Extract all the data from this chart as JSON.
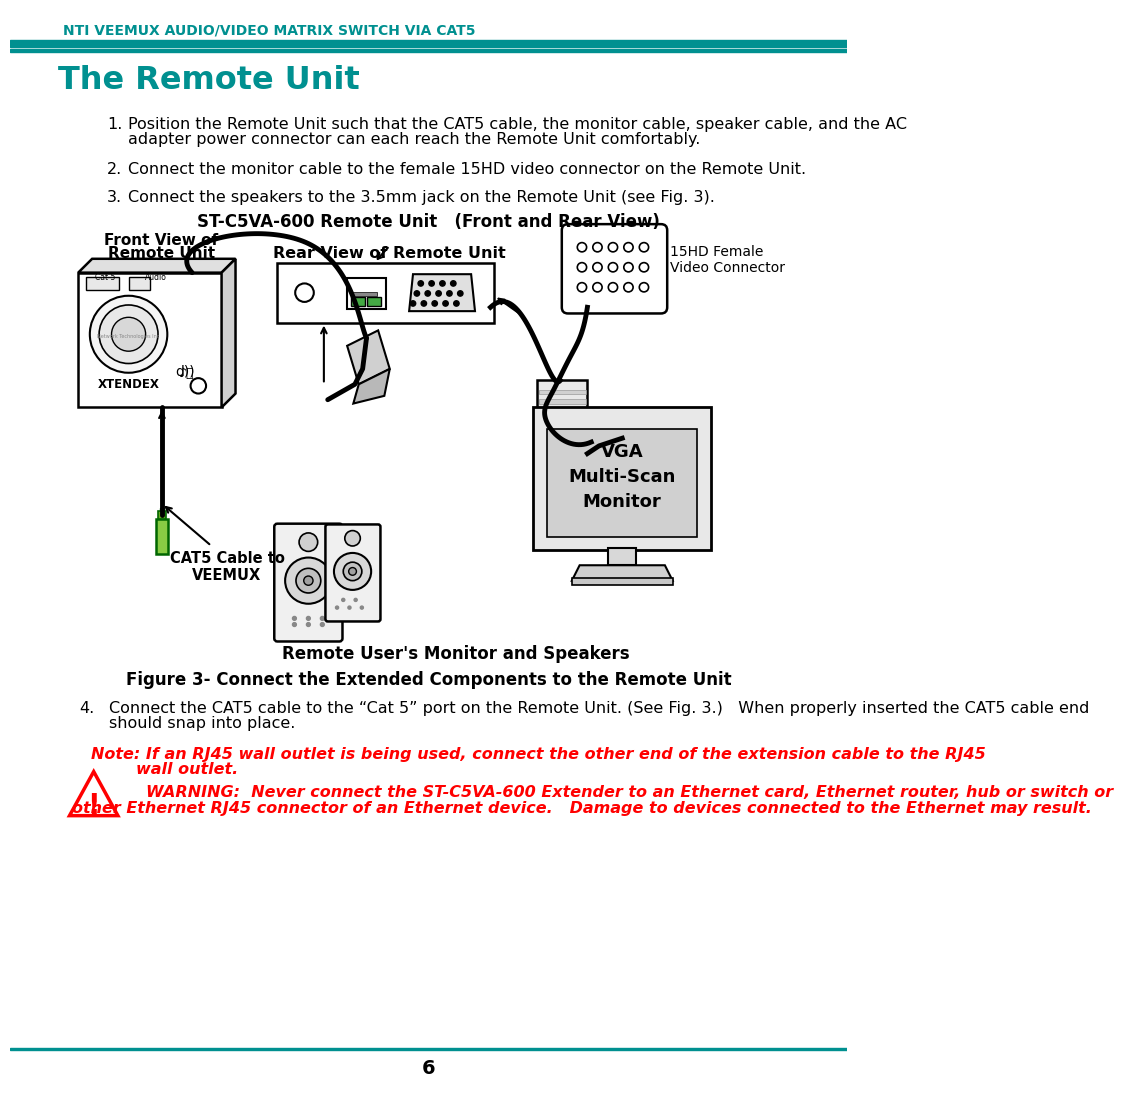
{
  "header_text": "NTI VEEMUX AUDIO/VIDEO MATRIX SWITCH VIA CAT5",
  "header_color": "#009090",
  "teal_color": "#009090",
  "body_text_color": "#000000",
  "red_color": "#ff0000",
  "page_number": "6",
  "title": "The Remote Unit",
  "title_color": "#009090",
  "item1": "Position the Remote Unit such that the CAT5 cable, the monitor cable, speaker cable, and the AC\n         adapter power connector can each reach the Remote Unit comfortably.",
  "item2": "Connect the monitor cable to the female 15HD video connector on the Remote Unit.",
  "item3": "Connect the speakers to the 3.5mm jack on the Remote Unit (see Fig. 3).",
  "fig_title": "ST-C5VA-600 Remote Unit   (Front and Rear View)",
  "front_label": "Front View of\nRemote Unit",
  "rear_label": "Rear View of Remote Unit",
  "connector_label": "15HD Female\nVideo Connector",
  "cat5_label": "CAT5 Cable to\nVEEMUX",
  "monitor_label": "VGA\nMulti-Scan\nMonitor",
  "speaker_label": "Remote User's Monitor and Speakers",
  "fig_caption": "Figure 3- Connect the Extended Components to the Remote Unit",
  "item4_num": "4.",
  "item4a": "Connect the CAT5 cable to the “Cat 5” port on the Remote Unit. (See Fig. 3.)   When properly inserted the CAT5 cable end",
  "item4b": "should snap into place.",
  "note_line1": "Note: If an RJ45 wall outlet is being used, connect the other end of the extension cable to the RJ45",
  "note_line2": "        wall outlet.",
  "warning_line1": "WARNING:  Never connect the ST-C5VA-600 Extender to an Ethernet card, Ethernet router, hub or switch or",
  "warning_line2": "other Ethernet RJ45 connector of an Ethernet device.   Damage to devices connected to the Ethernet may result.",
  "bg_color": "#ffffff"
}
